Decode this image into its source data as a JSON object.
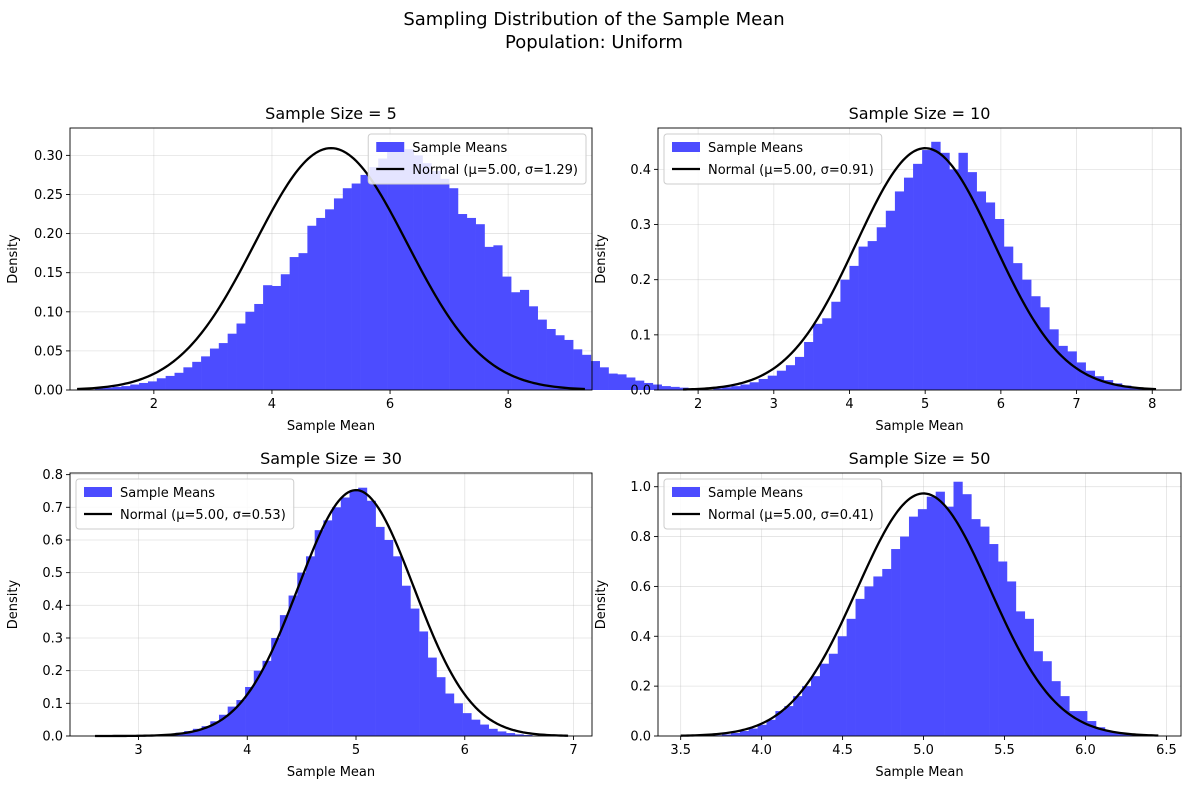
{
  "figure": {
    "title_line1": "Sampling Distribution of the Sample Mean",
    "title_line2": "Population: Uniform"
  },
  "colors": {
    "bars": "#4c4cff",
    "curve": "#000000",
    "grid": "#b0b0b0"
  },
  "chart_data": [
    {
      "type": "bar",
      "title": "Sample Size = 5",
      "xlabel": "Sample Mean",
      "ylabel": "Density",
      "xlim": [
        0.58,
        9.42
      ],
      "ylim": [
        0,
        0.335
      ],
      "xticks": [
        2,
        4,
        6,
        8
      ],
      "xtick_labels": [
        "2",
        "4",
        "6",
        "8"
      ],
      "yticks": [
        0,
        0.05,
        0.1,
        0.15,
        0.2,
        0.25,
        0.3
      ],
      "ytick_labels": [
        "0.00",
        "0.05",
        "0.10",
        "0.15",
        "0.20",
        "0.25",
        "0.30"
      ],
      "grid": true,
      "legend_position": "top-right",
      "series": [
        {
          "name": "Sample Means",
          "kind": "histogram",
          "bin_start": 1.0,
          "bin_width": 0.15,
          "density": [
            0.002,
            0.003,
            0.004,
            0.005,
            0.007,
            0.009,
            0.011,
            0.015,
            0.018,
            0.022,
            0.029,
            0.036,
            0.043,
            0.053,
            0.06,
            0.072,
            0.085,
            0.1,
            0.11,
            0.134,
            0.133,
            0.148,
            0.17,
            0.175,
            0.21,
            0.22,
            0.231,
            0.245,
            0.258,
            0.264,
            0.275,
            0.285,
            0.296,
            0.305,
            0.305,
            0.308,
            0.3,
            0.29,
            0.28,
            0.27,
            0.258,
            0.225,
            0.22,
            0.212,
            0.183,
            0.185,
            0.145,
            0.125,
            0.128,
            0.107,
            0.09,
            0.078,
            0.07,
            0.064,
            0.052,
            0.045,
            0.037,
            0.029,
            0.021,
            0.02,
            0.016,
            0.012,
            0.009,
            0.007,
            0.005,
            0.004,
            0.003,
            0.002,
            0.001
          ]
        },
        {
          "name": "Normal (μ=5.00, σ=1.29)",
          "kind": "normal",
          "mu": 5.0,
          "sigma": 1.29,
          "x_range": [
            0.7,
            9.3
          ]
        }
      ]
    },
    {
      "type": "bar",
      "title": "Sample Size = 10",
      "xlabel": "Sample Mean",
      "ylabel": "Density",
      "xlim": [
        1.47,
        8.38
      ],
      "ylim": [
        0,
        0.475
      ],
      "xticks": [
        2,
        3,
        4,
        5,
        6,
        7,
        8
      ],
      "xtick_labels": [
        "2",
        "3",
        "4",
        "5",
        "6",
        "7",
        "8"
      ],
      "yticks": [
        0,
        0.1,
        0.2,
        0.3,
        0.4
      ],
      "ytick_labels": [
        "0.0",
        "0.1",
        "0.2",
        "0.3",
        "0.4"
      ],
      "grid": true,
      "legend_position": "top-left",
      "series": [
        {
          "name": "Sample Means",
          "kind": "histogram",
          "bin_start": 2.2,
          "bin_width": 0.12,
          "density": [
            0.003,
            0.005,
            0.007,
            0.01,
            0.014,
            0.02,
            0.026,
            0.035,
            0.045,
            0.06,
            0.087,
            0.12,
            0.13,
            0.16,
            0.2,
            0.225,
            0.26,
            0.27,
            0.295,
            0.325,
            0.36,
            0.385,
            0.41,
            0.435,
            0.45,
            0.43,
            0.4,
            0.43,
            0.395,
            0.36,
            0.34,
            0.31,
            0.26,
            0.23,
            0.2,
            0.17,
            0.15,
            0.11,
            0.08,
            0.07,
            0.05,
            0.035,
            0.025,
            0.018,
            0.012,
            0.008,
            0.005,
            0.003
          ]
        },
        {
          "name": "Normal (μ=5.00, σ=0.91)",
          "kind": "normal",
          "mu": 5.0,
          "sigma": 0.91,
          "x_range": [
            1.8,
            8.05
          ]
        }
      ]
    },
    {
      "type": "bar",
      "title": "Sample Size = 30",
      "xlabel": "Sample Mean",
      "ylabel": "Density",
      "xlim": [
        2.37,
        7.17
      ],
      "ylim": [
        0,
        0.805
      ],
      "xticks": [
        3,
        4,
        5,
        6,
        7
      ],
      "xtick_labels": [
        "3",
        "4",
        "5",
        "6",
        "7"
      ],
      "yticks": [
        0,
        0.1,
        0.2,
        0.3,
        0.4,
        0.5,
        0.6,
        0.7,
        0.8
      ],
      "ytick_labels": [
        "0.0",
        "0.1",
        "0.2",
        "0.3",
        "0.4",
        "0.5",
        "0.6",
        "0.7",
        "0.8"
      ],
      "grid": true,
      "legend_position": "top-left",
      "series": [
        {
          "name": "Sample Means",
          "kind": "histogram",
          "bin_start": 3.1,
          "bin_width": 0.08,
          "density": [
            0.002,
            0.004,
            0.006,
            0.01,
            0.015,
            0.022,
            0.03,
            0.045,
            0.065,
            0.09,
            0.11,
            0.15,
            0.2,
            0.23,
            0.3,
            0.37,
            0.43,
            0.5,
            0.55,
            0.63,
            0.66,
            0.7,
            0.73,
            0.75,
            0.76,
            0.72,
            0.64,
            0.6,
            0.55,
            0.46,
            0.39,
            0.32,
            0.24,
            0.18,
            0.13,
            0.1,
            0.07,
            0.05,
            0.035,
            0.022,
            0.014,
            0.009,
            0.005,
            0.003
          ]
        },
        {
          "name": "Normal (μ=5.00, σ=0.53)",
          "kind": "normal",
          "mu": 5.0,
          "sigma": 0.53,
          "x_range": [
            2.6,
            6.95
          ]
        }
      ]
    },
    {
      "type": "bar",
      "title": "Sample Size = 50",
      "xlabel": "Sample Mean",
      "ylabel": "Density",
      "xlim": [
        3.36,
        6.59
      ],
      "ylim": [
        0,
        1.055
      ],
      "xticks": [
        3.5,
        4.0,
        4.5,
        5.0,
        5.5,
        6.0,
        6.5
      ],
      "xtick_labels": [
        "3.5",
        "4.0",
        "4.5",
        "5.0",
        "5.5",
        "6.0",
        "6.5"
      ],
      "yticks": [
        0,
        0.2,
        0.4,
        0.6,
        0.8,
        1.0
      ],
      "ytick_labels": [
        "0.0",
        "0.2",
        "0.4",
        "0.6",
        "0.8",
        "1.0"
      ],
      "grid": true,
      "legend_position": "top-left",
      "series": [
        {
          "name": "Sample Means",
          "kind": "histogram",
          "bin_start": 3.7,
          "bin_width": 0.055,
          "density": [
            0.003,
            0.006,
            0.012,
            0.02,
            0.03,
            0.045,
            0.065,
            0.1,
            0.12,
            0.16,
            0.2,
            0.24,
            0.29,
            0.33,
            0.4,
            0.47,
            0.55,
            0.6,
            0.64,
            0.67,
            0.75,
            0.8,
            0.88,
            0.91,
            0.96,
            0.98,
            0.92,
            1.02,
            0.97,
            0.87,
            0.84,
            0.77,
            0.7,
            0.62,
            0.5,
            0.47,
            0.34,
            0.3,
            0.22,
            0.16,
            0.1,
            0.1,
            0.06,
            0.035,
            0.02,
            0.012,
            0.007,
            0.004
          ]
        },
        {
          "name": "Normal (μ=5.00, σ=0.41)",
          "kind": "normal",
          "mu": 5.0,
          "sigma": 0.41,
          "x_range": [
            3.5,
            6.45
          ]
        }
      ]
    }
  ]
}
